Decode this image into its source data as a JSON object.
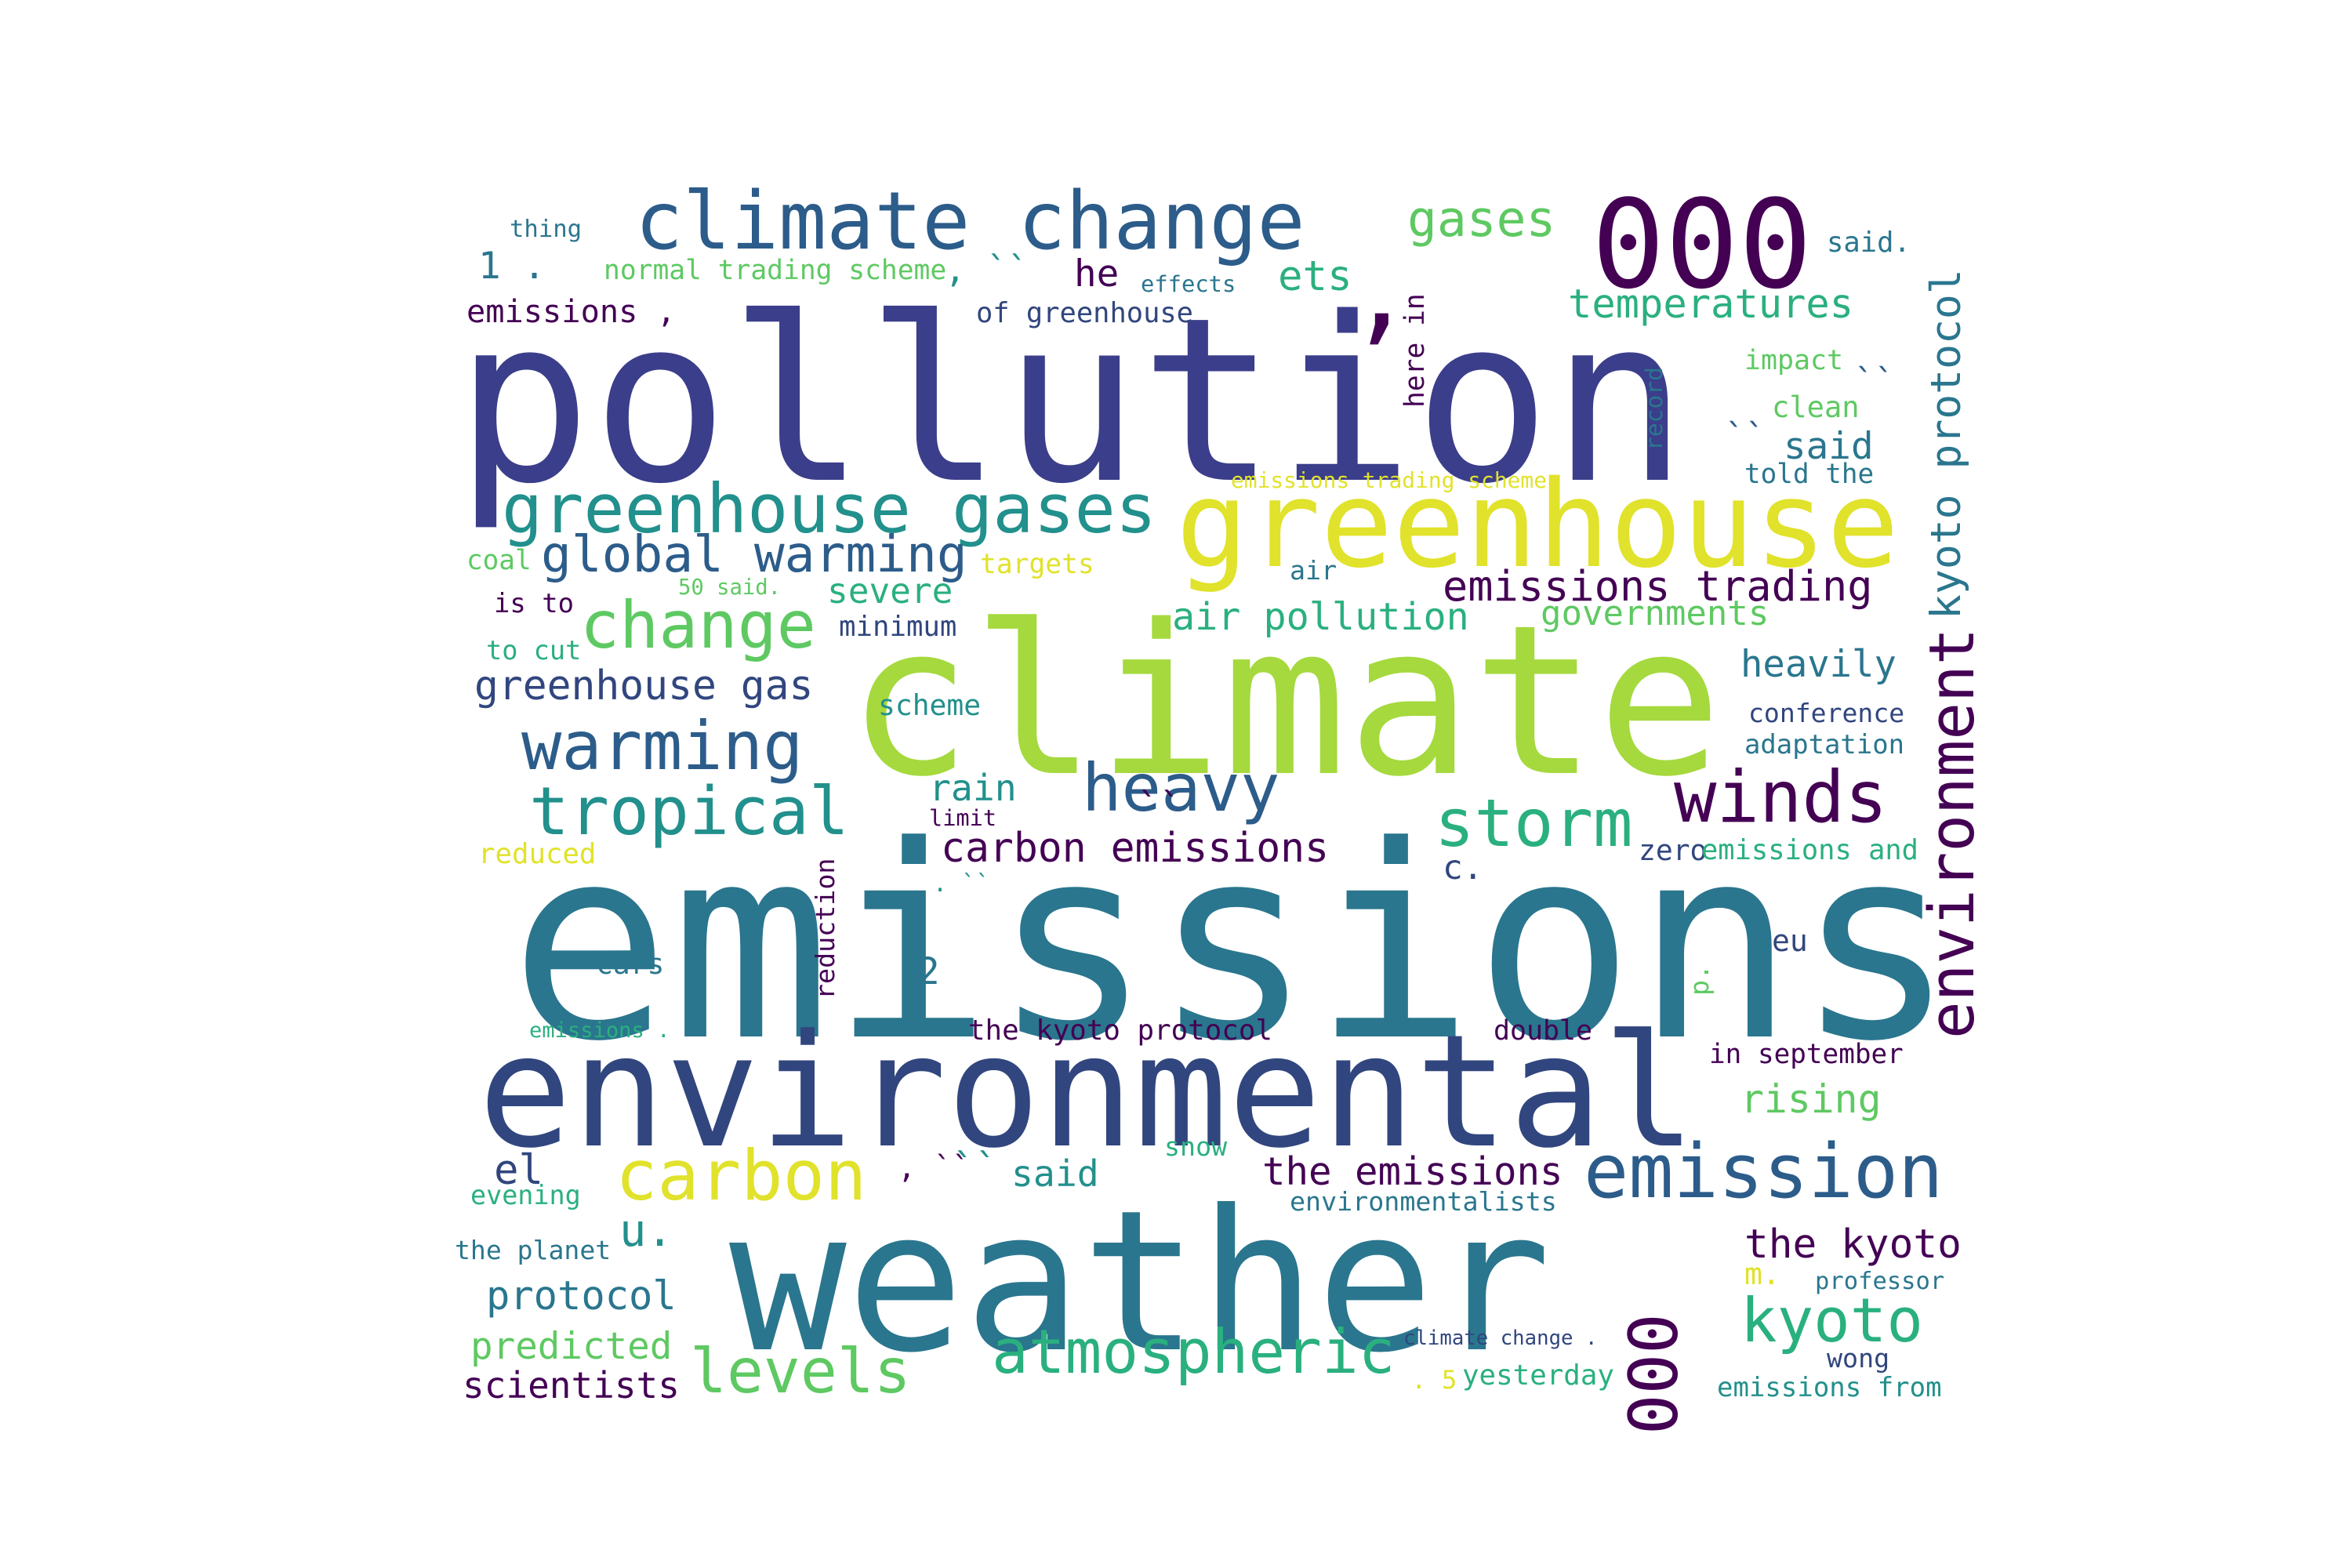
{
  "word_cloud": {
    "colors": {
      "dark_purple": "#440154",
      "indigo": "#3b3e8a",
      "navy": "#31467e",
      "blue": "#2c5c8a",
      "teal_blue": "#2a768e",
      "teal": "#22908c",
      "green_teal": "#2ab07f",
      "green": "#5ec962",
      "lime": "#a5d93d",
      "yellow": "#e1e22b"
    },
    "words": [
      {
        "text": "pollution",
        "color": "indigo",
        "rotated": false
      },
      {
        "text": "emissions",
        "color": "teal_blue",
        "rotated": false
      },
      {
        "text": "climate",
        "color": "lime",
        "rotated": false
      },
      {
        "text": "weather",
        "color": "teal_blue",
        "rotated": false
      },
      {
        "text": "environmental",
        "color": "navy",
        "rotated": false
      },
      {
        "text": "greenhouse",
        "color": "yellow",
        "rotated": false
      },
      {
        "text": "000",
        "color": "dark_purple",
        "rotated": false
      },
      {
        "text": ",",
        "color": "dark_purple",
        "rotated": false
      },
      {
        "text": "climate change",
        "color": "blue",
        "rotated": false
      },
      {
        "text": "greenhouse gases",
        "color": "teal",
        "rotated": false
      },
      {
        "text": "emission",
        "color": "blue",
        "rotated": false
      },
      {
        "text": "environment",
        "color": "dark_purple",
        "rotated": true
      },
      {
        "text": "000",
        "color": "dark_purple",
        "rotated": true
      },
      {
        "text": "carbon",
        "color": "yellow",
        "rotated": false
      },
      {
        "text": "tropical",
        "color": "teal",
        "rotated": false
      },
      {
        "text": "warming",
        "color": "blue",
        "rotated": false
      },
      {
        "text": "change",
        "color": "green",
        "rotated": false
      },
      {
        "text": "winds",
        "color": "dark_purple",
        "rotated": false
      },
      {
        "text": "heavy",
        "color": "blue",
        "rotated": false
      },
      {
        "text": "storm",
        "color": "green_teal",
        "rotated": false
      },
      {
        "text": "atmospheric",
        "color": "green_teal",
        "rotated": false
      },
      {
        "text": "kyoto",
        "color": "green_teal",
        "rotated": false
      },
      {
        "text": "levels",
        "color": "green",
        "rotated": false
      },
      {
        "text": "global warming",
        "color": "blue",
        "rotated": false
      },
      {
        "text": "emissions trading",
        "color": "dark_purple",
        "rotated": false
      },
      {
        "text": "kyoto protocol",
        "color": "teal_blue",
        "rotated": true
      },
      {
        "text": "carbon emissions",
        "color": "dark_purple",
        "rotated": false
      },
      {
        "text": "air pollution",
        "color": "green_teal",
        "rotated": false
      },
      {
        "text": "greenhouse gas",
        "color": "navy",
        "rotated": false
      },
      {
        "text": "temperatures",
        "color": "green_teal",
        "rotated": false
      },
      {
        "text": "gases",
        "color": "green",
        "rotated": false
      },
      {
        "text": "governments",
        "color": "green",
        "rotated": false
      },
      {
        "text": "the emissions",
        "color": "dark_purple",
        "rotated": false
      },
      {
        "text": "the kyoto",
        "color": "dark_purple",
        "rotated": false
      },
      {
        "text": "protocol",
        "color": "teal_blue",
        "rotated": false
      },
      {
        "text": "predicted",
        "color": "green",
        "rotated": false
      },
      {
        "text": "scientists",
        "color": "dark_purple",
        "rotated": false
      },
      {
        "text": "heavily",
        "color": "teal_blue",
        "rotated": false
      },
      {
        "text": "rising",
        "color": "green",
        "rotated": false
      },
      {
        "text": "severe",
        "color": "green_teal",
        "rotated": false
      },
      {
        "text": "said",
        "color": "teal_blue",
        "rotated": false
      },
      {
        "text": "said",
        "color": "teal",
        "rotated": false
      },
      {
        "text": "ets",
        "color": "green_teal",
        "rotated": false
      },
      {
        "text": "he",
        "color": "dark_purple",
        "rotated": false
      },
      {
        "text": "emissions ,",
        "color": "dark_purple",
        "rotated": false
      },
      {
        "text": "rain",
        "color": "teal",
        "rotated": false
      },
      {
        "text": "u.",
        "color": "teal",
        "rotated": false
      },
      {
        "text": "el",
        "color": "navy",
        "rotated": false
      },
      {
        "text": "1 .",
        "color": "teal_blue",
        "rotated": false
      },
      {
        "text": "``",
        "color": "blue",
        "rotated": false
      },
      {
        "text": "``",
        "color": "blue",
        "rotated": false
      },
      {
        "text": "``",
        "color": "dark_purple",
        "rotated": false
      },
      {
        "text": "``",
        "color": "teal",
        "rotated": false
      },
      {
        "text": ", ``",
        "color": "teal",
        "rotated": false
      },
      {
        "text": ", ``",
        "color": "dark_purple",
        "rotated": false
      },
      {
        "text": "normal trading scheme",
        "color": "green",
        "rotated": false
      },
      {
        "text": "of greenhouse",
        "color": "navy",
        "rotated": false
      },
      {
        "text": "emissions trading scheme",
        "color": "yellow",
        "rotated": false
      },
      {
        "text": "here in",
        "color": "dark_purple",
        "rotated": true
      },
      {
        "text": "record",
        "color": "teal_blue",
        "rotated": true
      },
      {
        "text": "impact",
        "color": "green",
        "rotated": false
      },
      {
        "text": "clean",
        "color": "green",
        "rotated": false
      },
      {
        "text": "told the",
        "color": "teal_blue",
        "rotated": false
      },
      {
        "text": "said.",
        "color": "teal_blue",
        "rotated": false
      },
      {
        "text": "effects",
        "color": "teal_blue",
        "rotated": false
      },
      {
        "text": "thing",
        "color": "teal_blue",
        "rotated": false
      },
      {
        "text": "coal",
        "color": "green",
        "rotated": false
      },
      {
        "text": "50 said.",
        "color": "green",
        "rotated": false
      },
      {
        "text": "targets",
        "color": "yellow",
        "rotated": false
      },
      {
        "text": "air",
        "color": "teal_blue",
        "rotated": false
      },
      {
        "text": "is to",
        "color": "dark_purple",
        "rotated": false
      },
      {
        "text": "minimum",
        "color": "navy",
        "rotated": false
      },
      {
        "text": "to cut",
        "color": "green_teal",
        "rotated": false
      },
      {
        "text": "scheme",
        "color": "teal",
        "rotated": false
      },
      {
        "text": "conference",
        "color": "navy",
        "rotated": false
      },
      {
        "text": "adaptation",
        "color": "teal_blue",
        "rotated": false
      },
      {
        "text": "limit",
        "color": "dark_purple",
        "rotated": false
      },
      {
        "text": "reduced",
        "color": "yellow",
        "rotated": false
      },
      {
        "text": "c.",
        "color": "navy",
        "rotated": false
      },
      {
        "text": "zero",
        "color": "navy",
        "rotated": false
      },
      {
        "text": "emissions and",
        "color": "green_teal",
        "rotated": false
      },
      {
        "text": "reduction",
        "color": "dark_purple",
        "rotated": true
      },
      {
        "text": "cars",
        "color": "teal_blue",
        "rotated": false
      },
      {
        "text": "2",
        "color": "teal_blue",
        "rotated": false
      },
      {
        "text": "eu",
        "color": "navy",
        "rotated": false
      },
      {
        "text": "p.",
        "color": "green",
        "rotated": true
      },
      {
        "text": "emissions .",
        "color": "green_teal",
        "rotated": false
      },
      {
        "text": "the kyoto protocol",
        "color": "dark_purple",
        "rotated": false
      },
      {
        "text": "double",
        "color": "dark_purple",
        "rotated": false
      },
      {
        "text": "in september",
        "color": "dark_purple",
        "rotated": false
      },
      {
        "text": "snow",
        "color": "green_teal",
        "rotated": false
      },
      {
        "text": "evening",
        "color": "green_teal",
        "rotated": false
      },
      {
        "text": "environmentalists",
        "color": "teal_blue",
        "rotated": false
      },
      {
        "text": "the planet",
        "color": "teal_blue",
        "rotated": false
      },
      {
        "text": "m.",
        "color": "yellow",
        "rotated": false
      },
      {
        "text": "professor",
        "color": "teal_blue",
        "rotated": false
      },
      {
        "text": "climate change .",
        "color": "navy",
        "rotated": false
      },
      {
        "text": "wong",
        "color": "navy",
        "rotated": false
      },
      {
        "text": ". 5",
        "color": "yellow",
        "rotated": false
      },
      {
        "text": "yesterday",
        "color": "green_teal",
        "rotated": false
      },
      {
        "text": "emissions from",
        "color": "teal",
        "rotated": false
      },
      {
        "text": ". ``",
        "color": "teal",
        "rotated": false
      }
    ]
  }
}
